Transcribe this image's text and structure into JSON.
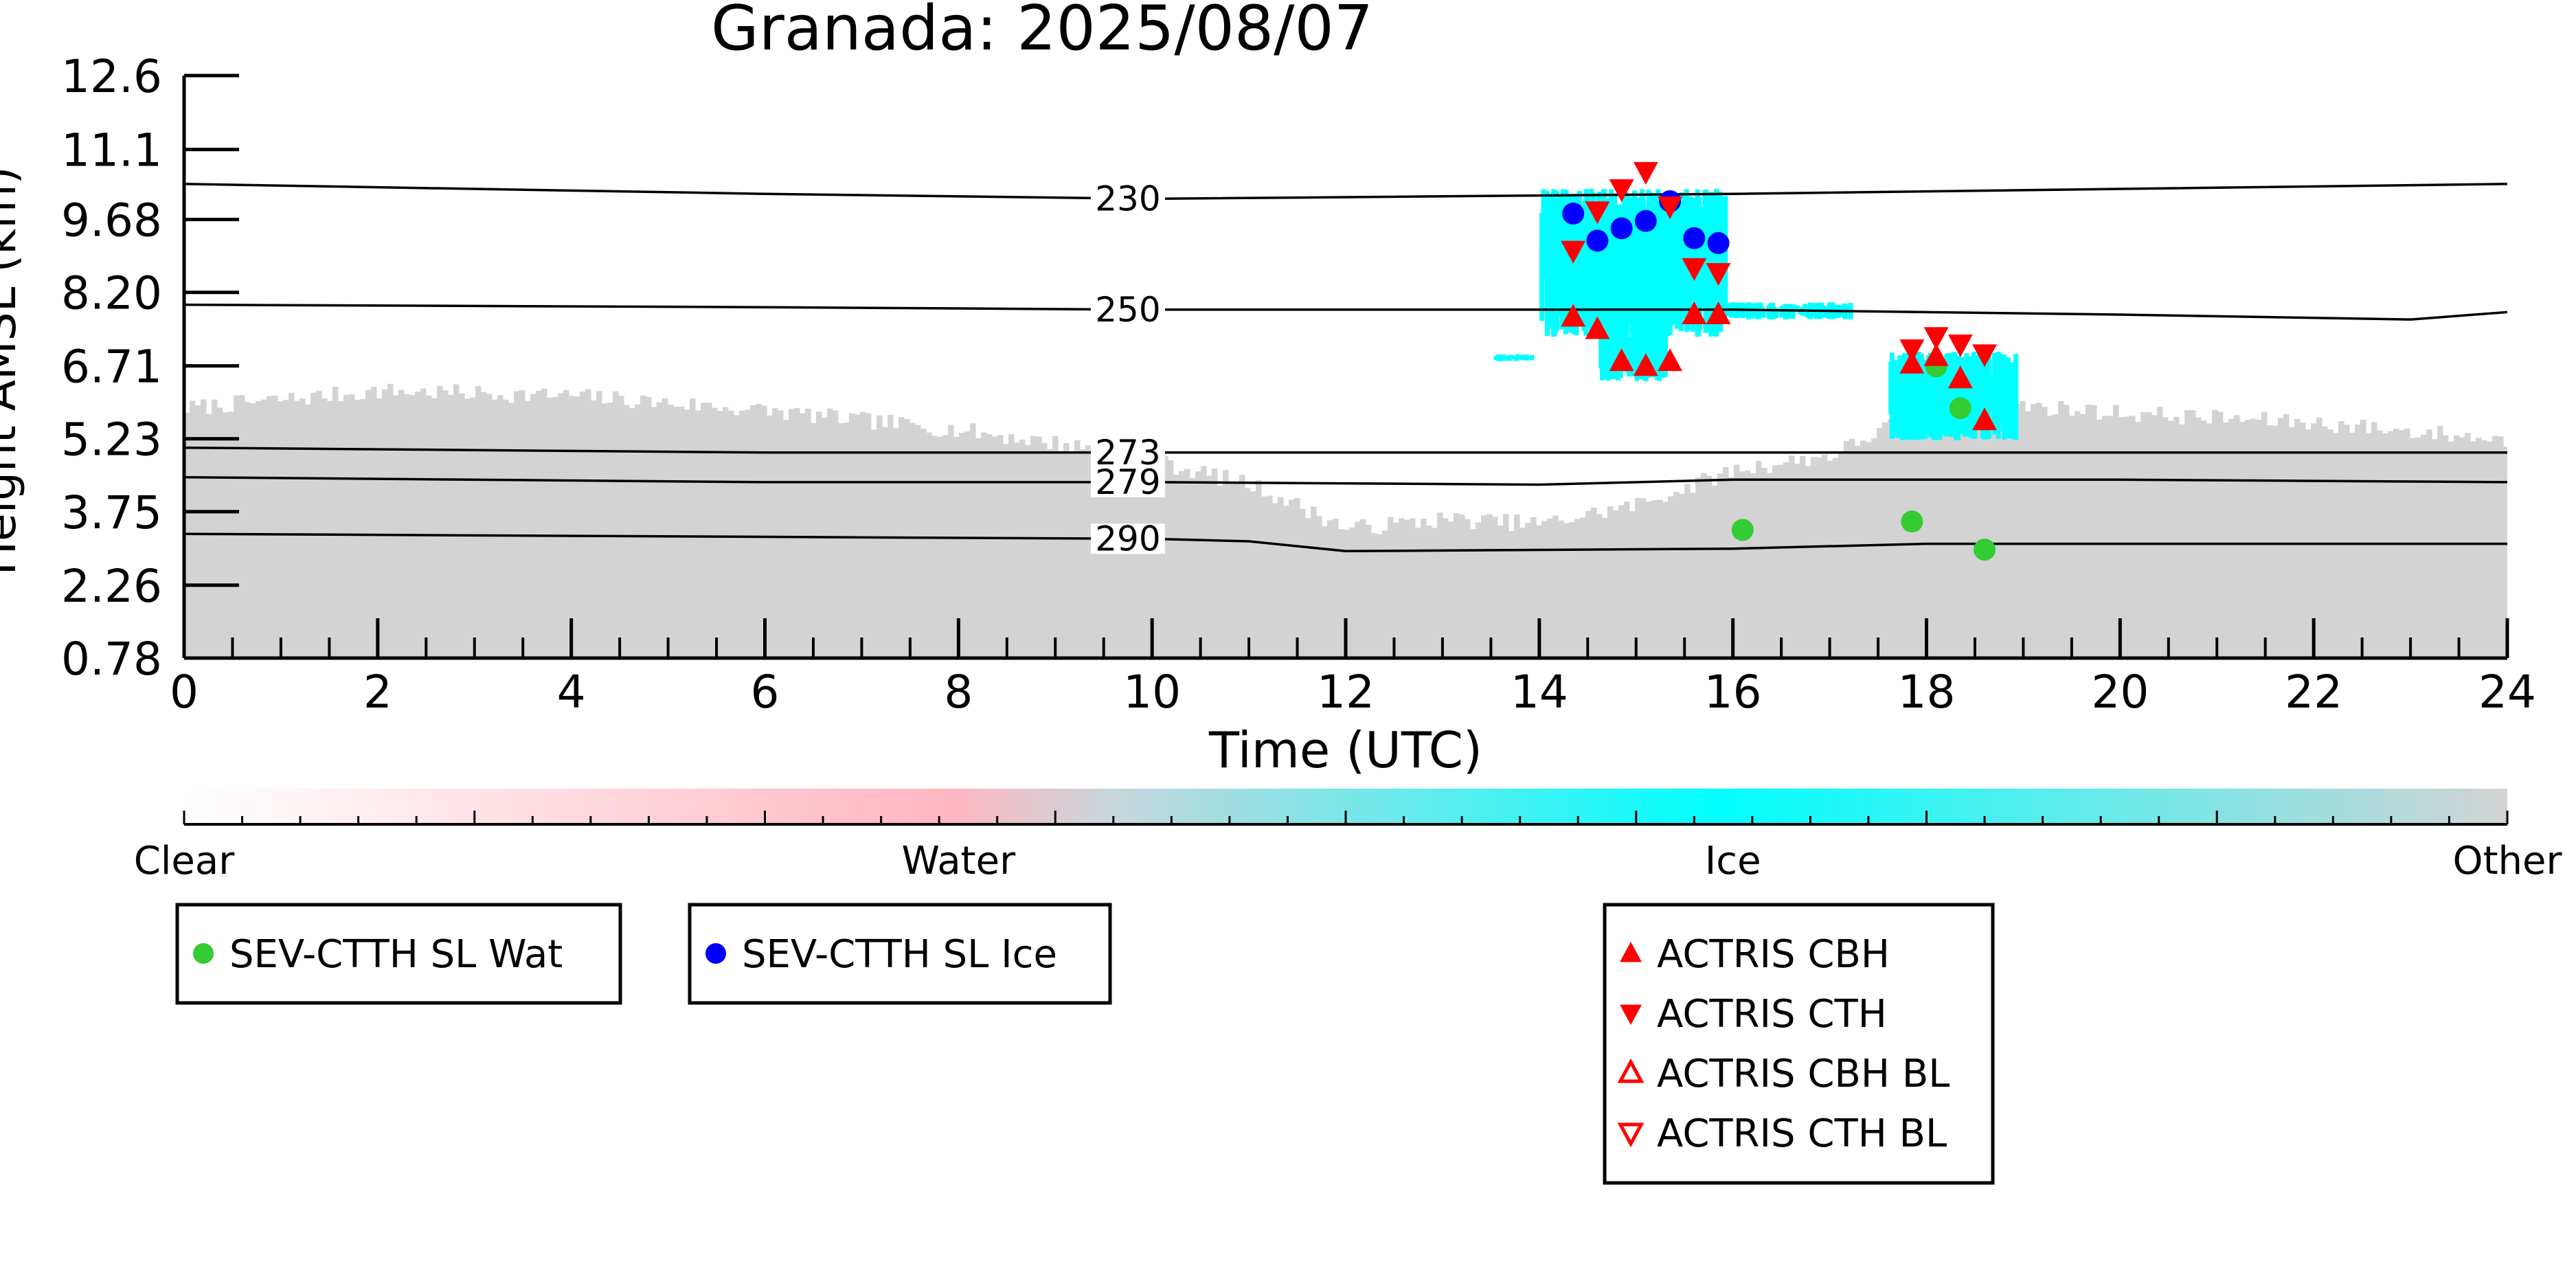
{
  "chart_data": {
    "type": "scatter",
    "title": "Granada: 2025/08/07",
    "xlabel": "Time (UTC)",
    "ylabel": "Height AMSL (km)",
    "xlim": [
      0,
      24
    ],
    "ylim": [
      0.78,
      12.6
    ],
    "x_ticks": [
      "0",
      "2",
      "4",
      "6",
      "8",
      "10",
      "12",
      "14",
      "16",
      "18",
      "20",
      "22",
      "24"
    ],
    "y_ticks": [
      "0.78",
      "2.26",
      "3.75",
      "5.23",
      "6.71",
      "8.20",
      "9.68",
      "11.1",
      "12.6"
    ],
    "background_classification": {
      "colormap_labels": [
        "Clear",
        "Water",
        "Ice",
        "Other"
      ],
      "colormap_colors": [
        "#ffffff",
        "#ffb6c1",
        "#00ffff",
        "#d3d3d3"
      ]
    },
    "temperature_contours": [
      {
        "label": "230",
        "values": [
          [
            0,
            10.4
          ],
          [
            6,
            10.2
          ],
          [
            10,
            10.1
          ],
          [
            16,
            10.2
          ],
          [
            20,
            10.3
          ],
          [
            24,
            10.4
          ]
        ]
      },
      {
        "label": "250",
        "values": [
          [
            0,
            7.95
          ],
          [
            6,
            7.9
          ],
          [
            10,
            7.85
          ],
          [
            16,
            7.85
          ],
          [
            20,
            7.75
          ],
          [
            23,
            7.65
          ],
          [
            24,
            7.8
          ]
        ]
      },
      {
        "label": "273",
        "values": [
          [
            0,
            5.05
          ],
          [
            6,
            4.95
          ],
          [
            10,
            4.95
          ],
          [
            16,
            4.95
          ],
          [
            20,
            4.95
          ],
          [
            24,
            4.95
          ]
        ]
      },
      {
        "label": "279",
        "values": [
          [
            0,
            4.45
          ],
          [
            6,
            4.35
          ],
          [
            10,
            4.35
          ],
          [
            14,
            4.3
          ],
          [
            16,
            4.4
          ],
          [
            20,
            4.4
          ],
          [
            24,
            4.35
          ]
        ]
      },
      {
        "label": "290",
        "values": [
          [
            0,
            3.3
          ],
          [
            10,
            3.2
          ],
          [
            11,
            3.15
          ],
          [
            12,
            2.95
          ],
          [
            16,
            3.0
          ],
          [
            18,
            3.1
          ],
          [
            24,
            3.1
          ]
        ]
      }
    ],
    "series": [
      {
        "name": "SEV-CTTH SL Wat",
        "color": "#33cc33",
        "marker": "circle",
        "points": [
          [
            16.1,
            3.38
          ],
          [
            17.85,
            3.55
          ],
          [
            18.1,
            6.7
          ],
          [
            18.35,
            5.85
          ],
          [
            18.6,
            2.98
          ]
        ]
      },
      {
        "name": "SEV-CTTH SL Ice",
        "color": "#0000ff",
        "marker": "circle",
        "points": [
          [
            14.35,
            9.8
          ],
          [
            14.6,
            9.25
          ],
          [
            14.85,
            9.5
          ],
          [
            15.1,
            9.65
          ],
          [
            15.35,
            10.05
          ],
          [
            15.6,
            9.3
          ],
          [
            15.85,
            9.2
          ]
        ]
      },
      {
        "name": "ACTRIS CBH",
        "color": "#ff0000",
        "marker": "triangle-up",
        "points": [
          [
            14.35,
            7.7
          ],
          [
            14.6,
            7.45
          ],
          [
            14.85,
            6.8
          ],
          [
            15.1,
            6.7
          ],
          [
            15.35,
            6.8
          ],
          [
            15.6,
            7.75
          ],
          [
            15.85,
            7.75
          ],
          [
            17.85,
            6.75
          ],
          [
            18.1,
            6.9
          ],
          [
            18.35,
            6.45
          ],
          [
            18.6,
            5.6
          ]
        ]
      },
      {
        "name": "ACTRIS CTH",
        "color": "#ff0000",
        "marker": "triangle-down",
        "points": [
          [
            14.35,
            9.05
          ],
          [
            14.6,
            9.85
          ],
          [
            14.85,
            10.3
          ],
          [
            15.1,
            10.65
          ],
          [
            15.35,
            9.95
          ],
          [
            15.6,
            8.7
          ],
          [
            15.85,
            8.6
          ],
          [
            17.85,
            7.05
          ],
          [
            18.1,
            7.3
          ],
          [
            18.35,
            7.15
          ],
          [
            18.6,
            6.95
          ]
        ]
      },
      {
        "name": "ACTRIS CBH BL",
        "color": "#ff0000",
        "marker": "triangle-up-open",
        "points": []
      },
      {
        "name": "ACTRIS CTH BL",
        "color": "#ff0000",
        "marker": "triangle-down-open",
        "points": []
      }
    ]
  }
}
